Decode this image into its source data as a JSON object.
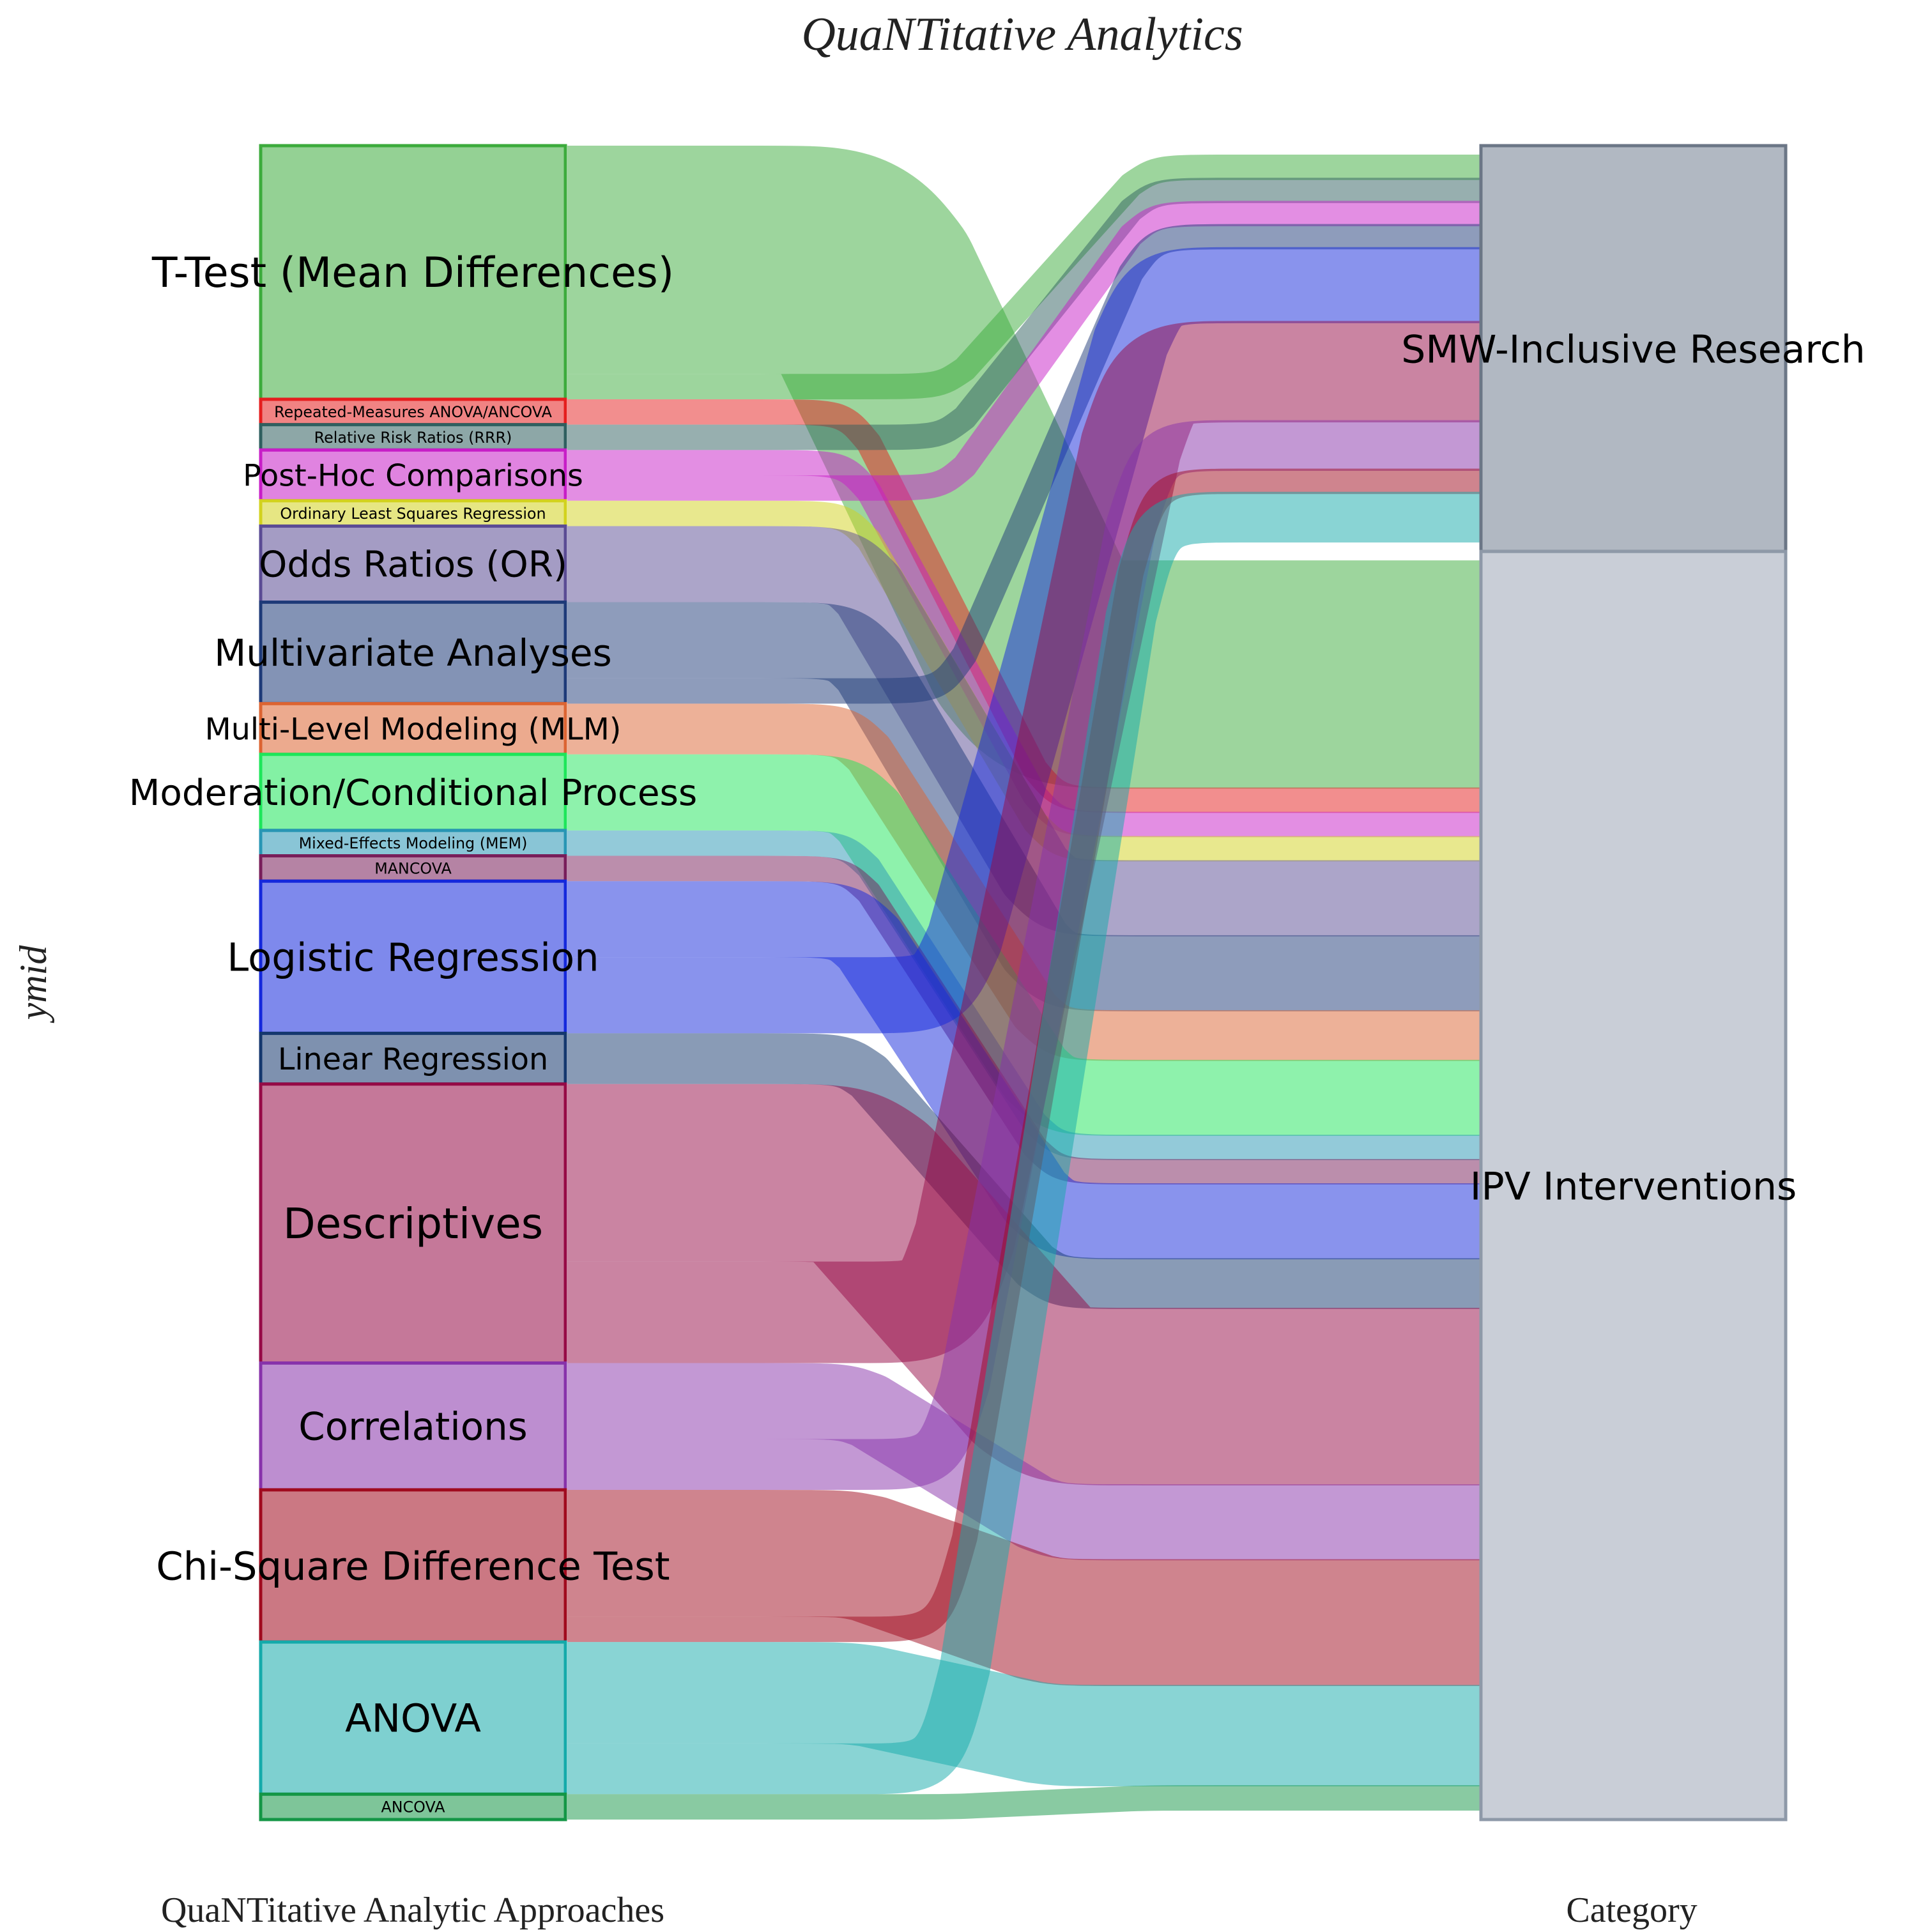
{
  "chart_data": {
    "type": "sankey",
    "title": "QuaNTitative Analytics",
    "ylabel": "ymid",
    "axis_left_label": "QuaNTitative Analytic Approaches",
    "axis_right_label": "Category",
    "categories": [
      {
        "name": "SMW-Inclusive Research",
        "color": "#708090"
      },
      {
        "name": "IPV Interventions",
        "color": "#8c96a6"
      }
    ],
    "approaches": [
      {
        "name": "T-Test (Mean Differences)",
        "color": "#3cab3c",
        "smw": 1,
        "ipv": 9
      },
      {
        "name": "Repeated-Measures ANOVA/ANCOVA",
        "color": "#e51e1e",
        "smw": 0,
        "ipv": 1
      },
      {
        "name": "Relative Risk Ratios (RRR)",
        "color": "#2f5f5f",
        "smw": 1,
        "ipv": 0
      },
      {
        "name": "Post-Hoc Comparisons",
        "color": "#c71ec7",
        "smw": 1,
        "ipv": 1
      },
      {
        "name": "Ordinary Least Squares Regression",
        "color": "#d2d21e",
        "smw": 0,
        "ipv": 1
      },
      {
        "name": "Odds Ratios (OR)",
        "color": "#5a4b94",
        "smw": 0,
        "ipv": 3
      },
      {
        "name": "Multivariate Analyses",
        "color": "#1e3a78",
        "smw": 1,
        "ipv": 3
      },
      {
        "name": "Multi-Level Modeling (MLM)",
        "color": "#dc6432",
        "smw": 0,
        "ipv": 2
      },
      {
        "name": "Moderation/Conditional Process",
        "color": "#1ee65a",
        "smw": 0,
        "ipv": 3
      },
      {
        "name": "Mixed-Effects Modeling (MEM)",
        "color": "#2896b4",
        "smw": 0,
        "ipv": 1
      },
      {
        "name": "MANCOVA",
        "color": "#781e5a",
        "smw": 0,
        "ipv": 1
      },
      {
        "name": "Logistic Regression",
        "color": "#1428dc",
        "smw": 3,
        "ipv": 3
      },
      {
        "name": "Linear Regression",
        "color": "#14376e",
        "smw": 0,
        "ipv": 2
      },
      {
        "name": "Descriptives",
        "color": "#960a46",
        "smw": 4,
        "ipv": 7
      },
      {
        "name": "Correlations",
        "color": "#8732aa",
        "smw": 2,
        "ipv": 3
      },
      {
        "name": "Chi-Square Difference Test",
        "color": "#a00a1e",
        "smw": 1,
        "ipv": 5
      },
      {
        "name": "ANOVA",
        "color": "#14aaaa",
        "smw": 2,
        "ipv": 4
      },
      {
        "name": "ANCOVA",
        "color": "#149646",
        "smw": 0,
        "ipv": 1
      }
    ],
    "flow_order": {
      "smw": [
        "T-Test (Mean Differences)",
        "Relative Risk Ratios (RRR)",
        "Post-Hoc Comparisons",
        "Multivariate Analyses",
        "Logistic Regression",
        "Descriptives",
        "Correlations",
        "Chi-Square Difference Test",
        "ANOVA"
      ],
      "ipv": [
        "T-Test (Mean Differences)",
        "Repeated-Measures ANOVA/ANCOVA",
        "Post-Hoc Comparisons",
        "Ordinary Least Squares Regression",
        "Odds Ratios (OR)",
        "Multivariate Analyses",
        "Multi-Level Modeling (MLM)",
        "Moderation/Conditional Process",
        "Mixed-Effects Modeling (MEM)",
        "MANCOVA",
        "Logistic Regression",
        "Linear Regression",
        "Descriptives",
        "Correlations",
        "Chi-Square Difference Test",
        "ANOVA",
        "ANCOVA"
      ]
    }
  }
}
